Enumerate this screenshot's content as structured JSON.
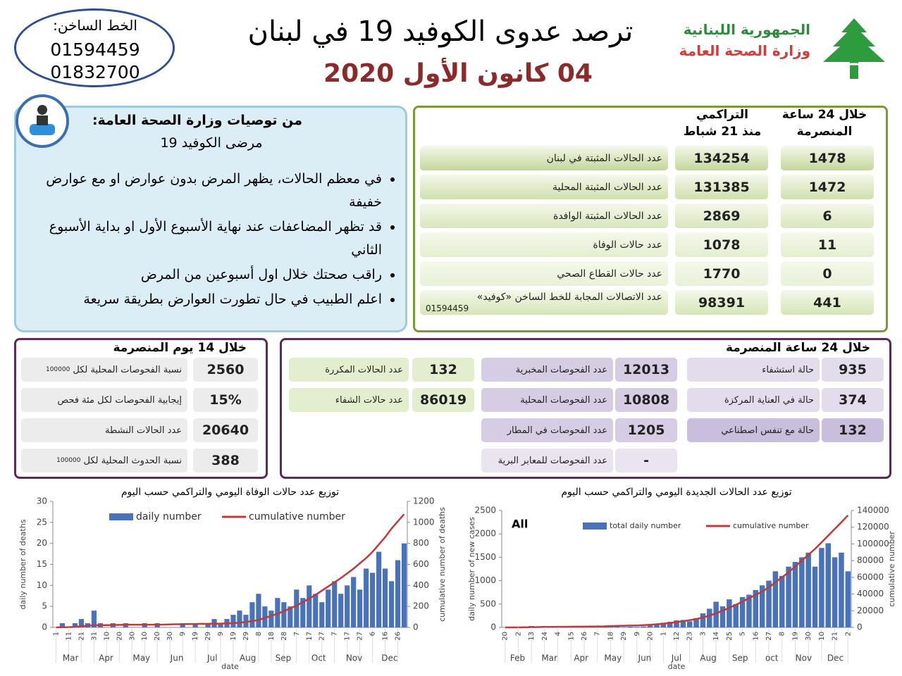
{
  "header": {
    "hotline_label": "الخط الساخن:",
    "hotline_numbers": [
      "01594459",
      "01832700"
    ],
    "title": "ترصد عدوى الكوفيد 19 في لبنان",
    "date": "04 كانون الأول 2020",
    "republic": "الجمهورية اللبنانية",
    "ministry": "وزارة الصحة العامة"
  },
  "recommendations": {
    "heading": "من توصيات وزارة الصحة العامة:",
    "subheading": "مرضى الكوفيد 19",
    "bullets": [
      "في معظم الحالات، يظهر المرض بدون عوارض او مع عوارض خفيفة",
      "قد تظهر المضاعفات عند نهاية الأسبوع الأول او بداية الأسبوع الثاني",
      "راقب صحتك خلال اول أسبوعين من المرض",
      "اعلم الطبيب في حال تطورت العوارض بطريقة سريعة"
    ]
  },
  "summary": {
    "daily_header": [
      "خلال 24 ساعة",
      "المنصرمة"
    ],
    "cumulative_header": [
      "التراكمي",
      "منذ 21 شباط"
    ],
    "rows": [
      {
        "label": "عدد الحالات المثبتة في لبنان",
        "daily": "1478",
        "cumulative": "134254"
      },
      {
        "label": "عدد الحالات المثبتة المحلية",
        "daily": "1472",
        "cumulative": "131385"
      },
      {
        "label": "عدد الحالات المثبتة الوافدة",
        "daily": "6",
        "cumulative": "2869"
      },
      {
        "label": "عدد حالات الوفاة",
        "daily": "11",
        "cumulative": "1078"
      },
      {
        "label": "عدد حالات القطاع الصحي",
        "daily": "0",
        "cumulative": "1770"
      },
      {
        "label": "عدد الاتصالات المجابة للخط الساخن «كوفيد»",
        "note": "01594459",
        "daily": "441",
        "cumulative": "98391"
      }
    ]
  },
  "last14": {
    "title": "خلال 14 يوم المنصرمة",
    "rows": [
      {
        "label": "نسبة الفحوصات المحلية لكل",
        "note": "100000",
        "value": "2560"
      },
      {
        "label": "إيجابية الفحوصات لكل مئة فحص",
        "value": "15%"
      },
      {
        "label": "عدد الحالات النشطة",
        "value": "20640"
      },
      {
        "label": "نسبة الحدوث المحلية لكل",
        "note": "100000",
        "value": "388"
      }
    ]
  },
  "last24": {
    "title": "خلال 24 ساعة المنصرمة",
    "columns": [
      [
        {
          "label": "حالة استشفاء",
          "value": "935"
        },
        {
          "label": "حالة في العناية المركزة",
          "value": "374"
        },
        {
          "label": "حالة مع تنفس اصطناعي",
          "value": "132"
        }
      ],
      [
        {
          "label": "عدد الفحوصات المخبرية",
          "value": "12013"
        },
        {
          "label": "عدد الفحوصات المحلية",
          "value": "10808"
        },
        {
          "label": "عدد الفحوصات في المطار",
          "value": "1205"
        },
        {
          "label": "عدد الفحوصات للمعابر البرية",
          "value": "-"
        }
      ],
      [
        {
          "label": "عدد الحالات المكررة",
          "value": "132"
        },
        {
          "label": "عدد حالات الشفاء",
          "value": "86019"
        }
      ]
    ]
  },
  "chart_data": [
    {
      "type": "bar",
      "title": "توزيع عدد حالات الوفاة اليومي والتراكمي حسب اليوم",
      "ylabel": "daily number of deaths",
      "y2label": "cumulative number of deaths",
      "xlabel": "date",
      "categories": [
        "1",
        null,
        "11",
        null,
        "21",
        null,
        "31",
        null,
        "10",
        null,
        "20",
        null,
        "30",
        null,
        "10",
        null,
        "20",
        null,
        "30",
        null,
        "9",
        null,
        "19",
        null,
        "29",
        null,
        "9",
        null,
        "19",
        null,
        "29",
        null,
        "8",
        null,
        "18",
        null,
        "28",
        null,
        "7",
        null,
        "17",
        null,
        "27",
        null,
        "7",
        null,
        "17",
        null,
        "27",
        null,
        "6",
        null,
        "16",
        null,
        "26",
        null
      ],
      "months": [
        "Mar",
        "Apr",
        "May",
        "Jun",
        "Jul",
        "Aug",
        "Sep",
        "Oct",
        "Nov",
        "Dec"
      ],
      "series": [
        {
          "name": "daily number",
          "color": "#4a72b8",
          "values": [
            0,
            1,
            0,
            1,
            2,
            1,
            4,
            1,
            0,
            1,
            0,
            1,
            0,
            0,
            1,
            0,
            1,
            0,
            0,
            0,
            1,
            0,
            1,
            0,
            1,
            2,
            1,
            2,
            3,
            4,
            3,
            6,
            8,
            5,
            4,
            7,
            6,
            5,
            9,
            7,
            10,
            8,
            6,
            9,
            11,
            8,
            10,
            12,
            9,
            14,
            13,
            18,
            14,
            11,
            16,
            20
          ]
        },
        {
          "name": "cumulative number",
          "type": "line",
          "axis": "y2",
          "color": "#c0393b",
          "values": [
            0,
            2,
            3,
            5,
            11,
            17,
            20,
            21,
            22,
            23,
            24,
            25,
            26,
            26,
            26,
            26,
            26,
            27,
            29,
            30,
            31,
            32,
            33,
            34,
            34,
            35,
            36,
            38,
            40,
            44,
            52,
            60,
            72,
            90,
            110,
            130,
            155,
            180,
            210,
            240,
            275,
            310,
            350,
            390,
            430,
            470,
            515,
            560,
            610,
            660,
            720,
            790,
            860,
            940,
            1010,
            1078
          ]
        }
      ],
      "ylim": [
        0,
        30
      ],
      "yticks": [
        0,
        5,
        10,
        15,
        20,
        25,
        30
      ],
      "y2lim": [
        0,
        1200
      ],
      "y2ticks": [
        0,
        200,
        400,
        600,
        800,
        1000,
        1200
      ]
    },
    {
      "type": "bar",
      "title": "توزيع عدد الحالات الجديدة اليومي والتراكمي حسب اليوم",
      "ylabel": "daily number of new cases",
      "y2label": "cumulative number",
      "xlabel": "date",
      "annotation": "All",
      "categories": [
        "20",
        null,
        "2",
        null,
        "13",
        null,
        "24",
        null,
        "4",
        null,
        "15",
        null,
        "26",
        null,
        "7",
        null,
        "18",
        null,
        "29",
        null,
        "9",
        null,
        "20",
        null,
        "1",
        null,
        "12",
        null,
        "23",
        null,
        "3",
        null,
        "14",
        null,
        "25",
        null,
        "5",
        null,
        "16",
        null,
        "27",
        null,
        "8",
        null,
        "19",
        null,
        "30",
        null,
        "10",
        null,
        "21",
        null,
        "2"
      ],
      "months": [
        "Feb",
        "Mar",
        "Apr",
        "May",
        "Jun",
        "Jul",
        "Aug",
        "Sep",
        "oct",
        "Nov",
        "Dec"
      ],
      "series": [
        {
          "name": "total daily number",
          "color": "#4a72b8",
          "values": [
            0,
            5,
            10,
            20,
            30,
            15,
            25,
            10,
            5,
            8,
            10,
            5,
            3,
            8,
            15,
            30,
            20,
            35,
            10,
            15,
            12,
            20,
            40,
            60,
            100,
            120,
            150,
            160,
            130,
            200,
            300,
            400,
            550,
            450,
            600,
            500,
            650,
            700,
            800,
            900,
            1000,
            1200,
            1100,
            1300,
            1400,
            1500,
            1600,
            1300,
            1700,
            1800,
            1500,
            1600,
            1200
          ]
        },
        {
          "name": "cumulative number",
          "type": "line",
          "axis": "y2",
          "color": "#c0393b",
          "values": [
            0,
            0,
            15,
            80,
            250,
            420,
            650,
            700,
            740,
            800,
            850,
            900,
            960,
            1050,
            1150,
            1300,
            1600,
            1850,
            2050,
            2200,
            2400,
            2700,
            3100,
            3800,
            4500,
            5200,
            6300,
            7400,
            8700,
            10000,
            12000,
            14000,
            17000,
            20000,
            23500,
            27000,
            31000,
            35000,
            39000,
            43000,
            48000,
            54000,
            60000,
            66000,
            73000,
            80000,
            87000,
            94000,
            102000,
            110000,
            118000,
            126000,
            134254
          ]
        }
      ],
      "ylim": [
        0,
        2500
      ],
      "yticks": [
        0,
        500,
        1000,
        1500,
        2000,
        2500
      ],
      "y2lim": [
        0,
        140000
      ],
      "y2ticks": [
        0,
        20000,
        40000,
        60000,
        80000,
        100000,
        120000,
        140000
      ]
    }
  ]
}
